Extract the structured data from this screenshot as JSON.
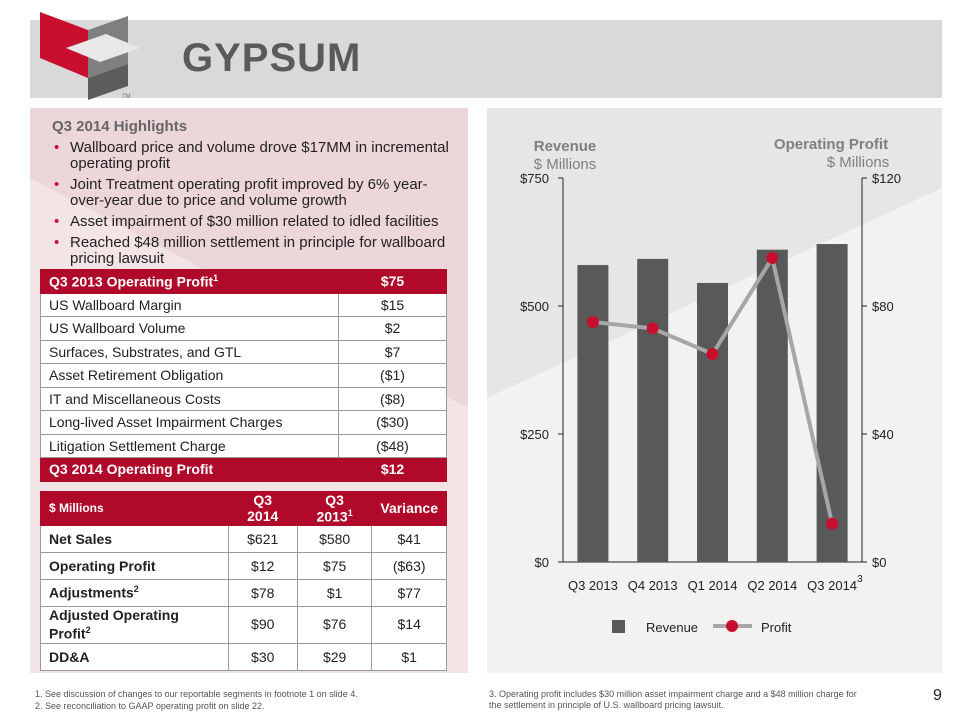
{
  "title": "GYPSUM",
  "logo_tm": "TM",
  "highlights": {
    "title": "Q3 2014 Highlights",
    "items": [
      "Wallboard price and volume drove $17MM in incremental operating profit",
      "Joint Treatment operating profit improved by 6% year-over-year due to price and volume growth",
      "Asset impairment of $30 million related to idled facilities",
      "Reached $48 million settlement in principle for wallboard pricing lawsuit"
    ]
  },
  "bridge": {
    "start_label": "Q3 2013 Operating Profit",
    "start_sup": "1",
    "start_value": "$75",
    "rows": [
      {
        "label": "US Wallboard Margin",
        "value": "$15"
      },
      {
        "label": "US Wallboard Volume",
        "value": "$2"
      },
      {
        "label": "Surfaces, Substrates, and GTL",
        "value": "$7"
      },
      {
        "label": "Asset Retirement Obligation",
        "value": "($1)"
      },
      {
        "label": "IT and Miscellaneous Costs",
        "value": "($8)"
      },
      {
        "label": "Long-lived Asset Impairment Charges",
        "value": "($30)"
      },
      {
        "label": "Litigation Settlement Charge",
        "value": "($48)"
      }
    ],
    "end_label": "Q3 2014 Operating Profit",
    "end_value": "$12"
  },
  "summary": {
    "headers": [
      "$ Millions",
      "Q3 2014",
      "Q3 2013",
      "Variance"
    ],
    "header_sup": "1",
    "rows": [
      {
        "label": "Net Sales",
        "sup": "",
        "values": [
          "$621",
          "$580",
          "$41"
        ]
      },
      {
        "label": "Operating Profit",
        "sup": "",
        "values": [
          "$12",
          "$75",
          "($63)"
        ]
      },
      {
        "label": "Adjustments",
        "sup": "2",
        "values": [
          "$78",
          "$1",
          "$77"
        ]
      },
      {
        "label": "Adjusted Operating Profit",
        "sup": "2",
        "values": [
          "$90",
          "$76",
          "$14"
        ]
      },
      {
        "label": "DD&A",
        "sup": "",
        "values": [
          "$30",
          "$29",
          "$1"
        ]
      }
    ]
  },
  "chart_data": {
    "type": "bar",
    "categories": [
      "Q3 2013",
      "Q4 2013",
      "Q1 2014",
      "Q2 2014",
      "Q3 2014"
    ],
    "last_category_sup": "3",
    "series": [
      {
        "name": "Revenue",
        "type": "bar",
        "axis": "left",
        "values": [
          580,
          592,
          545,
          610,
          621
        ],
        "color": "#595959"
      },
      {
        "name": "Profit",
        "type": "line",
        "axis": "right",
        "values": [
          75,
          73,
          65,
          95,
          12
        ],
        "color": "#c8102e",
        "line_color": "#a6a6a6"
      }
    ],
    "left_axis": {
      "title": "Revenue",
      "subtitle": "$ Millions",
      "ylim": [
        0,
        750
      ],
      "ticks": [
        0,
        250,
        500,
        750
      ],
      "tick_labels": [
        "$0",
        "$250",
        "$500",
        "$750"
      ]
    },
    "right_axis": {
      "title": "Operating Profit",
      "subtitle": "$ Millions",
      "ylim": [
        0,
        120
      ],
      "ticks": [
        0,
        40,
        80,
        120
      ],
      "tick_labels": [
        "$0",
        "$40",
        "$80",
        "$120"
      ]
    },
    "legend_position": "bottom",
    "grid": false
  },
  "footnotes": {
    "left": [
      "1. See discussion of changes to our reportable segments in footnote 1 on slide 4.",
      "2. See reconciliation to GAAP operating profit on slide 22."
    ],
    "right": "3.   Operating profit includes $30 million asset impairment charge and  a $48 million charge for the settlement in principle of U.S. wallboard pricing lawsuit."
  },
  "page_number": "9",
  "colors": {
    "accent": "#b0092a",
    "bar": "#595959",
    "line": "#a6a6a6",
    "marker": "#c8102e"
  }
}
